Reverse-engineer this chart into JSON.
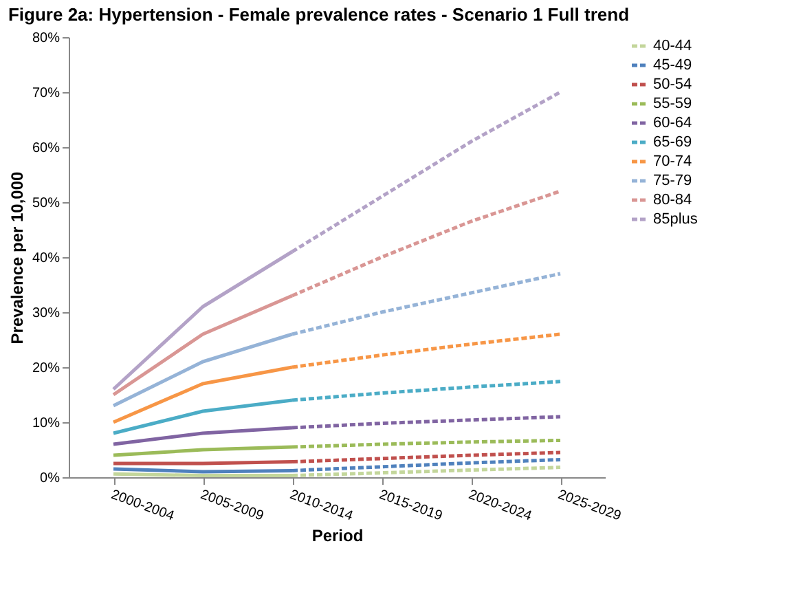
{
  "chart_data": {
    "type": "line",
    "title": "Figure 2a: Hypertension - Female prevalence rates - Scenario 1 Full trend",
    "xlabel": "Period",
    "ylabel": "Prevalence per 10,000",
    "categories": [
      "2000-2004",
      "2005-2009",
      "2010-2014",
      "2015-2019",
      "2020-2024",
      "2025-2029"
    ],
    "ylim": [
      0,
      80
    ],
    "yticks": [
      {
        "value": 0,
        "label": "0%"
      },
      {
        "value": 10,
        "label": "10%"
      },
      {
        "value": 20,
        "label": "20%"
      },
      {
        "value": 30,
        "label": "30%"
      },
      {
        "value": 40,
        "label": "40%"
      },
      {
        "value": 50,
        "label": "50%"
      },
      {
        "value": 60,
        "label": "60%"
      },
      {
        "value": 70,
        "label": "70%"
      },
      {
        "value": 80,
        "label": "80%"
      }
    ],
    "grid": false,
    "legend": "right",
    "marker": "none",
    "series": [
      {
        "color": "#c3d69b",
        "line_style": "solid",
        "values": [
          0.6,
          0.3,
          0.3,
          null,
          null,
          null
        ]
      },
      {
        "color": "#4f81bd",
        "line_style": "solid",
        "values": [
          1.5,
          1.0,
          1.2,
          null,
          null,
          null
        ]
      },
      {
        "color": "#c0504d",
        "line_style": "solid",
        "values": [
          2.5,
          2.5,
          2.8,
          null,
          null,
          null
        ]
      },
      {
        "color": "#9bbb59",
        "line_style": "solid",
        "values": [
          4,
          5,
          5.5,
          null,
          null,
          null
        ]
      },
      {
        "color": "#8064a2",
        "line_style": "solid",
        "values": [
          6,
          8,
          9,
          null,
          null,
          null
        ]
      },
      {
        "color": "#4bacc6",
        "line_style": "solid",
        "values": [
          8,
          12,
          14,
          null,
          null,
          null
        ]
      },
      {
        "color": "#f79646",
        "line_style": "solid",
        "values": [
          10,
          17,
          20,
          null,
          null,
          null
        ]
      },
      {
        "color": "#95b3d7",
        "line_style": "solid",
        "values": [
          13,
          21,
          26,
          null,
          null,
          null
        ]
      },
      {
        "color": "#d99694",
        "line_style": "solid",
        "values": [
          15,
          26,
          33,
          null,
          null,
          null
        ]
      },
      {
        "color": "#b3a2c7",
        "line_style": "solid",
        "values": [
          16,
          31,
          41,
          null,
          null,
          null
        ]
      },
      {
        "name": "40-44",
        "color": "#c3d69b",
        "line_style": "dashed",
        "values": [
          null,
          null,
          0.3,
          0.8,
          1.3,
          1.8
        ]
      },
      {
        "name": "45-49",
        "color": "#4f81bd",
        "line_style": "dashed",
        "values": [
          null,
          null,
          1.2,
          1.9,
          2.6,
          3.2
        ]
      },
      {
        "name": "50-54",
        "color": "#c0504d",
        "line_style": "dashed",
        "values": [
          null,
          null,
          2.8,
          3.4,
          4,
          4.5
        ]
      },
      {
        "name": "55-59",
        "color": "#9bbb59",
        "line_style": "dashed",
        "values": [
          null,
          null,
          5.5,
          6,
          6.4,
          6.7
        ]
      },
      {
        "name": "60-64",
        "color": "#8064a2",
        "line_style": "dashed",
        "values": [
          null,
          null,
          9,
          9.8,
          10.4,
          11
        ]
      },
      {
        "name": "65-69",
        "color": "#4bacc6",
        "line_style": "dashed",
        "values": [
          null,
          null,
          14,
          15.3,
          16.4,
          17.4
        ]
      },
      {
        "name": "70-74",
        "color": "#f79646",
        "line_style": "dashed",
        "values": [
          null,
          null,
          20,
          22.2,
          24.2,
          26
        ]
      },
      {
        "name": "75-79",
        "color": "#95b3d7",
        "line_style": "dashed",
        "values": [
          null,
          null,
          26,
          30,
          33.5,
          37
        ]
      },
      {
        "name": "80-84",
        "color": "#d99694",
        "line_style": "dashed",
        "values": [
          null,
          null,
          33,
          40,
          46.5,
          52
        ]
      },
      {
        "name": "85plus",
        "color": "#b3a2c7",
        "line_style": "dashed",
        "values": [
          null,
          null,
          41,
          51,
          61,
          70
        ]
      }
    ]
  }
}
